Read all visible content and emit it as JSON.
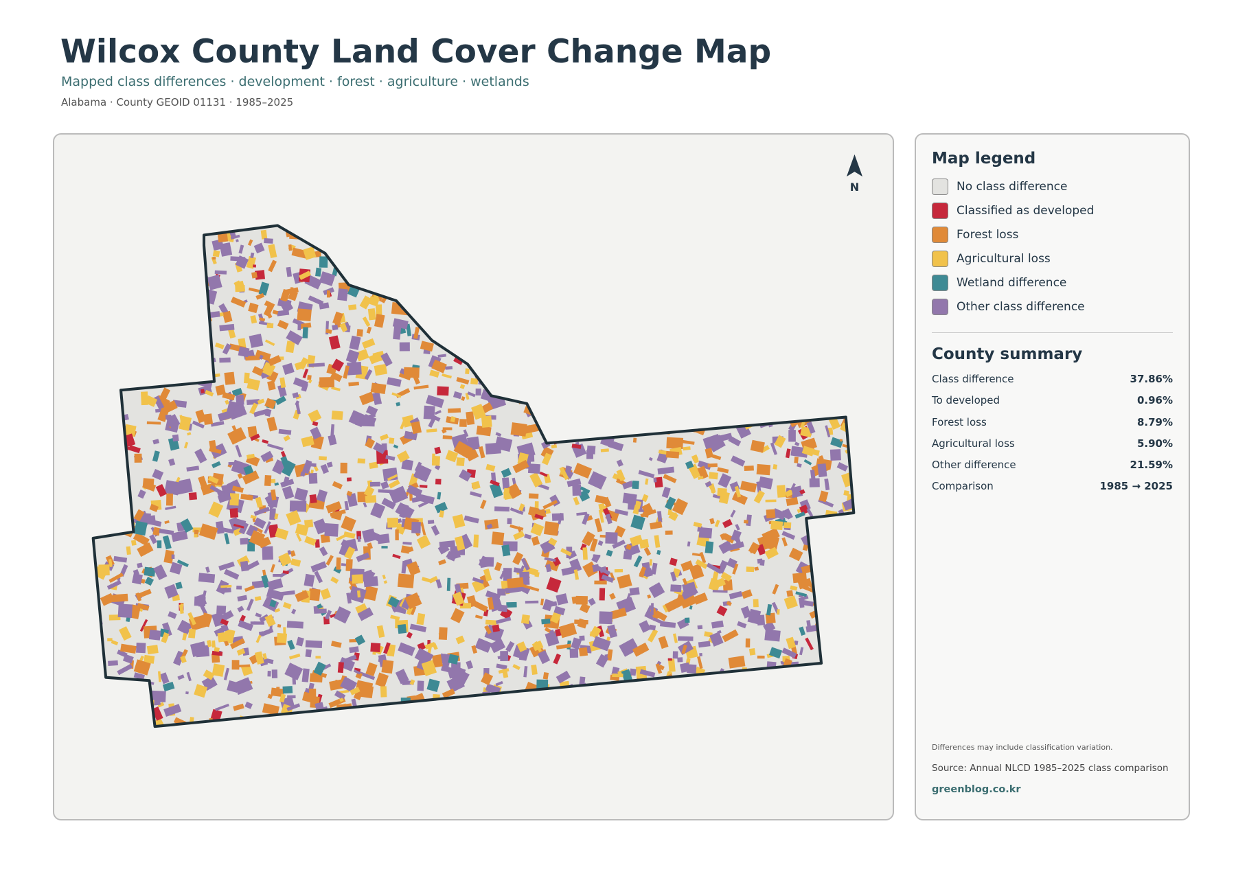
{
  "header": {
    "title": "Wilcox County Land Cover Change Map",
    "subtitle": "Mapped class differences · development · forest · agriculture · wetlands",
    "meta": "Alabama · County GEOID 01131 · 1985–2025"
  },
  "map": {
    "north_label": "N"
  },
  "legend": {
    "title": "Map legend",
    "items": [
      {
        "label": "No class difference",
        "color": "#e3e3e0"
      },
      {
        "label": "Classified as developed",
        "color": "#c6283b"
      },
      {
        "label": "Forest loss",
        "color": "#e08a38"
      },
      {
        "label": "Agricultural loss",
        "color": "#f1c24b"
      },
      {
        "label": "Wetland difference",
        "color": "#3e8a94"
      },
      {
        "label": "Other class difference",
        "color": "#9277ac"
      }
    ]
  },
  "summary": {
    "title": "County summary",
    "rows": [
      [
        "Class difference",
        "37.86%"
      ],
      [
        "To developed",
        "0.96%"
      ],
      [
        "Forest loss",
        "8.79%"
      ],
      [
        "Agricultural loss",
        "5.90%"
      ],
      [
        "Other difference",
        "21.59%"
      ],
      [
        "Comparison",
        "1985 → 2025"
      ]
    ]
  },
  "notes": {
    "caveat": "Differences may include classification variation.",
    "source": "Source: Annual NLCD 1985–2025 class comparison",
    "site": "greenblog.co.kr"
  }
}
